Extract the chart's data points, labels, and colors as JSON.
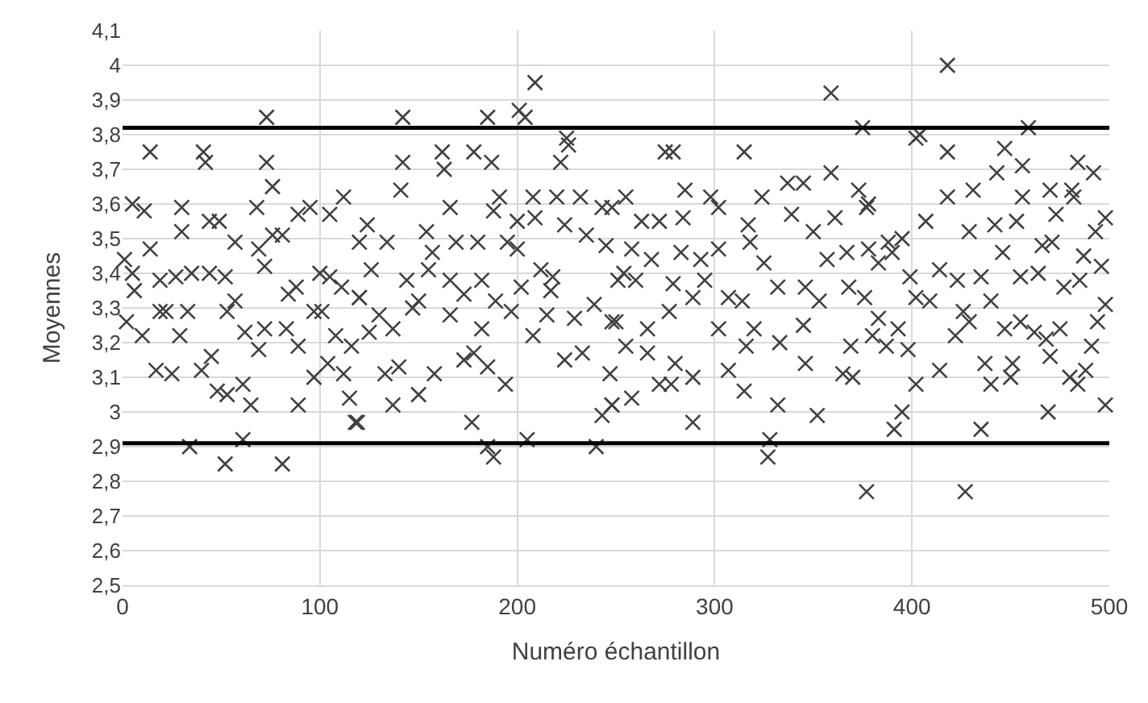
{
  "chart_data": {
    "type": "scatter",
    "xlabel": "Numéro échantillon",
    "ylabel": "Moyennes",
    "xlim": [
      0,
      500
    ],
    "xticks": [
      0,
      100,
      200,
      300,
      400,
      500
    ],
    "ylim": [
      2.5,
      4.1
    ],
    "yticks": [
      {
        "value": 2.5,
        "label": "2,5"
      },
      {
        "value": 2.6,
        "label": "2,6"
      },
      {
        "value": 2.7,
        "label": "2,7"
      },
      {
        "value": 2.8,
        "label": "2,8"
      },
      {
        "value": 2.9,
        "label": "2,9"
      },
      3,
      {
        "value": 3.1,
        "label": "3,1"
      },
      {
        "value": 3.2,
        "label": "3,2"
      },
      {
        "value": 3.3,
        "label": "3,3"
      },
      {
        "value": 3.4,
        "label": "3,4"
      },
      {
        "value": 3.5,
        "label": "3,5"
      },
      {
        "value": 3.6,
        "label": "3,6"
      },
      {
        "value": 3.7,
        "label": "3,7"
      },
      {
        "value": 3.8,
        "label": "3,8"
      },
      {
        "value": 3.9,
        "label": "3,9"
      },
      4,
      {
        "value": 4.1,
        "label": "4,1"
      }
    ],
    "grid": true,
    "marker": "cross",
    "ref_lines": [
      {
        "axis": "y",
        "value": 3.82,
        "color": "#000000"
      },
      {
        "axis": "y",
        "value": 2.91,
        "color": "#000000"
      }
    ],
    "series": [
      {
        "color": "#404040",
        "x": [
          73,
          14,
          41,
          42,
          73,
          76,
          5,
          11,
          30,
          68,
          30,
          44,
          49,
          57,
          14,
          76,
          81,
          89,
          95,
          105,
          112,
          69,
          72,
          1,
          5,
          19,
          27,
          35,
          44,
          52,
          6,
          88,
          84,
          100,
          105,
          111,
          120,
          19,
          22,
          33,
          53,
          97,
          101,
          2,
          10,
          29,
          57,
          62,
          72,
          83,
          89,
          69,
          116,
          108,
          17,
          25,
          40,
          45,
          48,
          53,
          61,
          65,
          89,
          97,
          104,
          112,
          115,
          118,
          34,
          61,
          52,
          81,
          209,
          142,
          185,
          201,
          204,
          225,
          222,
          226,
          142,
          162,
          163,
          178,
          187,
          141,
          166,
          191,
          188,
          208,
          209,
          200,
          220,
          232,
          243,
          224,
          235,
          245,
          124,
          120,
          134,
          154,
          157,
          169,
          180,
          195,
          200,
          126,
          144,
          155,
          166,
          173,
          182,
          202,
          212,
          218,
          217,
          251,
          120,
          130,
          125,
          137,
          150,
          147,
          166,
          182,
          189,
          197,
          208,
          215,
          229,
          239,
          248,
          133,
          140,
          150,
          158,
          173,
          178,
          185,
          194,
          224,
          233,
          137,
          247,
          243,
          248,
          177,
          185,
          188,
          205,
          240,
          119,
          359,
          375,
          275,
          279,
          315,
          285,
          337,
          345,
          359,
          373,
          377,
          255,
          248,
          298,
          302,
          324,
          284,
          263,
          272,
          339,
          350,
          361,
          258,
          268,
          283,
          293,
          302,
          317,
          318,
          325,
          357,
          367,
          378,
          254,
          260,
          279,
          289,
          295,
          307,
          314,
          332,
          346,
          353,
          368,
          376,
          250,
          266,
          277,
          302,
          316,
          320,
          333,
          345,
          369,
          380,
          255,
          266,
          280,
          289,
          307,
          315,
          346,
          365,
          370,
          248,
          258,
          272,
          278,
          289,
          332,
          352,
          328,
          327,
          377,
          418,
          459,
          402,
          404,
          418,
          447,
          456,
          443,
          484,
          492,
          431,
          470,
          481,
          418,
          456,
          482,
          498,
          493,
          407,
          473,
          378,
          429,
          442,
          453,
          388,
          395,
          466,
          471,
          487,
          496,
          446,
          383,
          390,
          399,
          414,
          423,
          435,
          455,
          464,
          477,
          485,
          402,
          409,
          426,
          440,
          498,
          494,
          383,
          393,
          387,
          398,
          422,
          429,
          447,
          455,
          462,
          468,
          475,
          470,
          491,
          414,
          437,
          440,
          451,
          450,
          480,
          484,
          488,
          402,
          395,
          391,
          435,
          469,
          498,
          427
        ],
        "values": [
          3.85,
          3.75,
          3.75,
          3.72,
          3.72,
          3.65,
          3.6,
          3.58,
          3.59,
          3.59,
          3.52,
          3.55,
          3.55,
          3.49,
          3.47,
          3.51,
          3.51,
          3.57,
          3.59,
          3.57,
          3.62,
          3.47,
          3.42,
          3.44,
          3.4,
          3.38,
          3.39,
          3.4,
          3.4,
          3.39,
          3.35,
          3.36,
          3.34,
          3.4,
          3.39,
          3.36,
          3.33,
          3.29,
          3.29,
          3.29,
          3.29,
          3.29,
          3.29,
          3.26,
          3.22,
          3.22,
          3.32,
          3.23,
          3.24,
          3.24,
          3.19,
          3.18,
          3.19,
          3.22,
          3.12,
          3.11,
          3.12,
          3.16,
          3.06,
          3.05,
          3.08,
          3.02,
          3.02,
          3.1,
          3.14,
          3.11,
          3.04,
          2.97,
          2.9,
          2.92,
          2.85,
          2.85,
          3.95,
          3.85,
          3.85,
          3.87,
          3.85,
          3.79,
          3.72,
          3.77,
          3.72,
          3.75,
          3.7,
          3.75,
          3.72,
          3.64,
          3.59,
          3.62,
          3.58,
          3.62,
          3.56,
          3.55,
          3.62,
          3.62,
          3.59,
          3.54,
          3.51,
          3.48,
          3.54,
          3.49,
          3.49,
          3.52,
          3.46,
          3.49,
          3.49,
          3.49,
          3.47,
          3.41,
          3.38,
          3.41,
          3.38,
          3.34,
          3.38,
          3.36,
          3.41,
          3.39,
          3.35,
          3.38,
          3.33,
          3.28,
          3.23,
          3.24,
          3.32,
          3.3,
          3.28,
          3.24,
          3.32,
          3.29,
          3.22,
          3.28,
          3.27,
          3.31,
          3.26,
          3.11,
          3.13,
          3.05,
          3.11,
          3.15,
          3.17,
          3.13,
          3.08,
          3.15,
          3.17,
          3.02,
          3.11,
          2.99,
          3.02,
          2.97,
          2.9,
          2.87,
          2.92,
          2.9,
          2.97,
          3.92,
          3.82,
          3.75,
          3.75,
          3.75,
          3.64,
          3.66,
          3.66,
          3.69,
          3.64,
          3.59,
          3.62,
          3.59,
          3.62,
          3.59,
          3.62,
          3.56,
          3.55,
          3.55,
          3.57,
          3.52,
          3.56,
          3.47,
          3.44,
          3.46,
          3.44,
          3.47,
          3.54,
          3.49,
          3.43,
          3.44,
          3.46,
          3.47,
          3.4,
          3.38,
          3.37,
          3.33,
          3.38,
          3.33,
          3.32,
          3.36,
          3.36,
          3.32,
          3.36,
          3.33,
          3.26,
          3.24,
          3.29,
          3.24,
          3.19,
          3.24,
          3.2,
          3.25,
          3.19,
          3.22,
          3.19,
          3.17,
          3.14,
          3.1,
          3.12,
          3.06,
          3.14,
          3.11,
          3.1,
          3.02,
          3.04,
          3.08,
          3.08,
          2.97,
          3.02,
          2.99,
          2.92,
          2.87,
          2.77,
          4.0,
          3.82,
          3.79,
          3.8,
          3.75,
          3.76,
          3.71,
          3.69,
          3.72,
          3.69,
          3.64,
          3.64,
          3.64,
          3.62,
          3.62,
          3.62,
          3.56,
          3.52,
          3.55,
          3.57,
          3.6,
          3.52,
          3.54,
          3.55,
          3.49,
          3.5,
          3.48,
          3.49,
          3.45,
          3.42,
          3.46,
          3.43,
          3.46,
          3.39,
          3.41,
          3.38,
          3.39,
          3.39,
          3.4,
          3.36,
          3.38,
          3.33,
          3.32,
          3.29,
          3.32,
          3.31,
          3.26,
          3.27,
          3.24,
          3.19,
          3.18,
          3.22,
          3.26,
          3.24,
          3.26,
          3.23,
          3.21,
          3.24,
          3.16,
          3.19,
          3.12,
          3.14,
          3.08,
          3.14,
          3.1,
          3.1,
          3.08,
          3.12,
          3.08,
          3.0,
          2.95,
          2.95,
          3.0,
          3.02,
          2.77
        ]
      }
    ]
  }
}
